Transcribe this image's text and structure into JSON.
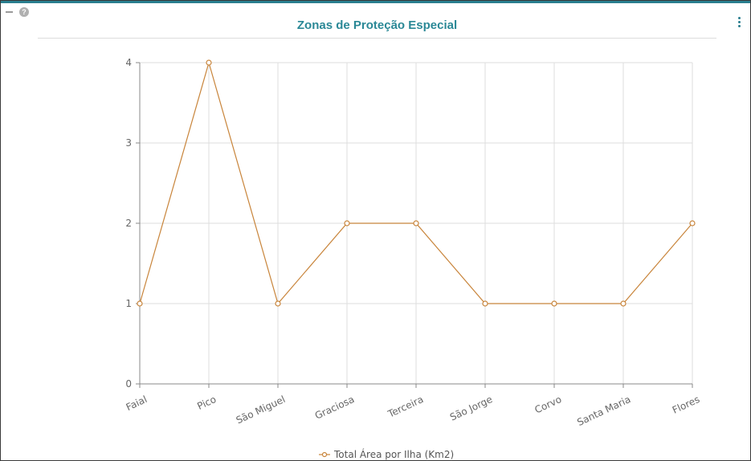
{
  "panel": {
    "help_icon_glyph": "?"
  },
  "chart_data": {
    "type": "line",
    "title": "Zonas de Proteção Especial",
    "categories": [
      "Faial",
      "Pico",
      "São Miguel",
      "Graciosa",
      "Terceira",
      "São Jorge",
      "Corvo",
      "Santa Maria",
      "Flores"
    ],
    "series": [
      {
        "name": "Total Área por Ilha (Km2)",
        "values": [
          1,
          4,
          1,
          2,
          2,
          1,
          1,
          1,
          2
        ]
      }
    ],
    "ylim": [
      0,
      4
    ],
    "yticks": [
      0,
      1,
      2,
      3,
      4
    ],
    "xlabel": "",
    "ylabel": "",
    "grid": true,
    "legend": "bottom-center",
    "colors": {
      "line": "#c8843a",
      "title": "#2a8896",
      "accent": "#2a7f8f",
      "grid": "#dddddd",
      "axis": "#888888"
    }
  }
}
